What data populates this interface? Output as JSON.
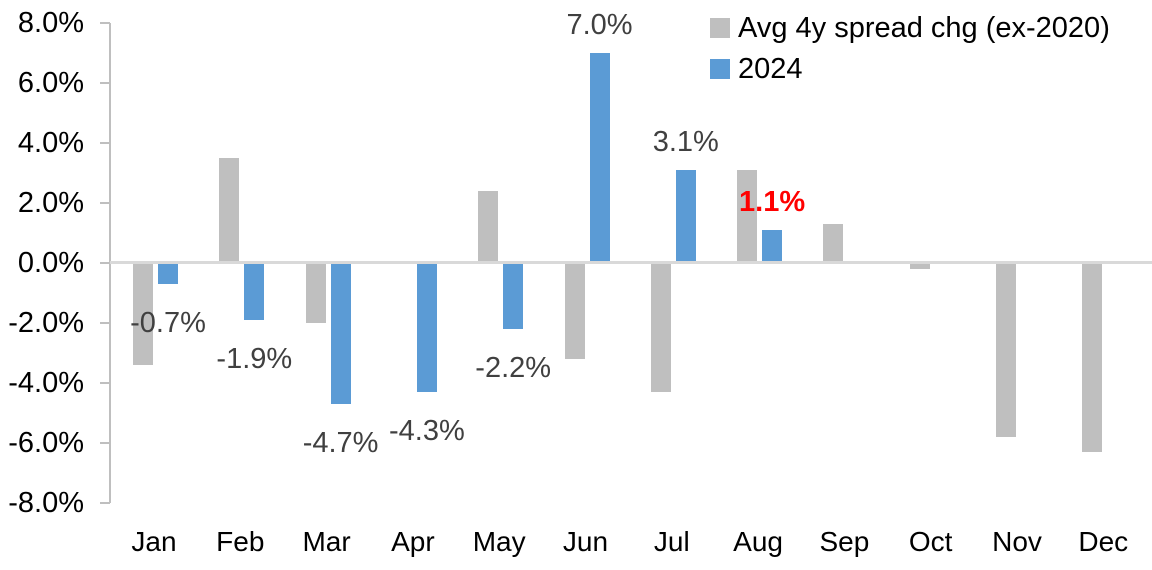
{
  "chart_data": {
    "type": "bar",
    "title": "",
    "xlabel": "",
    "ylabel": "",
    "categories": [
      "Jan",
      "Feb",
      "Mar",
      "Apr",
      "May",
      "Jun",
      "Jul",
      "Aug",
      "Sep",
      "Oct",
      "Nov",
      "Dec"
    ],
    "series": [
      {
        "name": "Avg 4y spread chg (ex-2020)",
        "color": "#BFBFBF",
        "values": [
          -3.4,
          3.5,
          -2.0,
          0.0,
          2.4,
          -3.2,
          -4.3,
          3.1,
          1.3,
          -0.2,
          -5.8,
          -6.3
        ]
      },
      {
        "name": "2024",
        "color": "#5B9BD5",
        "values": [
          -0.7,
          -1.9,
          -4.7,
          -4.3,
          -2.2,
          7.0,
          3.1,
          1.1,
          null,
          null,
          null,
          null
        ],
        "labels": [
          {
            "text": "-0.7%",
            "color": "#404040",
            "bold": false
          },
          {
            "text": "-1.9%",
            "color": "#404040",
            "bold": false
          },
          {
            "text": "-4.7%",
            "color": "#404040",
            "bold": false
          },
          {
            "text": "-4.3%",
            "color": "#404040",
            "bold": false
          },
          {
            "text": "-2.2%",
            "color": "#404040",
            "bold": false
          },
          {
            "text": "7.0%",
            "color": "#404040",
            "bold": false
          },
          {
            "text": "3.1%",
            "color": "#404040",
            "bold": false
          },
          {
            "text": "1.1%",
            "color": "#FF0000",
            "bold": true
          }
        ]
      }
    ],
    "ylim": [
      -8,
      8
    ],
    "ytick_step": 2,
    "ytick_labels": [
      "8.0%",
      "6.0%",
      "4.0%",
      "2.0%",
      "0.0%",
      "-2.0%",
      "-4.0%",
      "-6.0%",
      "-8.0%"
    ],
    "grid": false,
    "legend_position": "top-right",
    "axis_color": "#BFBFBF",
    "zero_line_color": "#D9D9D9"
  }
}
